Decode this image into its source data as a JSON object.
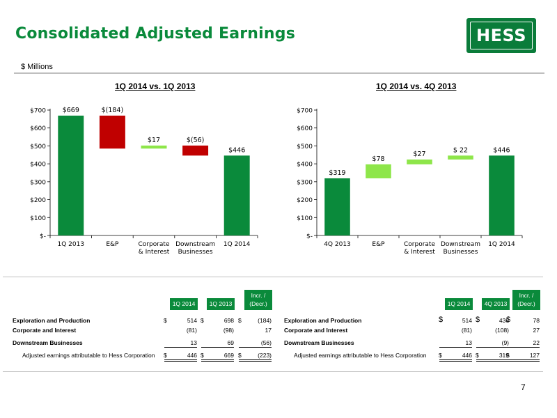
{
  "header": {
    "title": "Consolidated Adjusted Earnings",
    "units": "$ Millions",
    "logo_text": "HESS"
  },
  "colors": {
    "green_dark": "#0a8a3b",
    "green_light": "#8ee64a",
    "red": "#c00000"
  },
  "chart_data": [
    {
      "type": "bar",
      "subtype": "waterfall",
      "title": "1Q 2014 vs. 1Q 2013",
      "categories": [
        "1Q 2013",
        "E&P",
        "Corporate\n& Interest",
        "Downstream\nBusinesses",
        "1Q 2014"
      ],
      "values": [
        669,
        -184,
        17,
        -56,
        446
      ],
      "kinds": [
        "total",
        "delta",
        "delta",
        "delta",
        "total"
      ],
      "data_labels": [
        "$669",
        "$(184)",
        "$17",
        "$(56)",
        "$446"
      ],
      "yticks": [
        "$-",
        "$100",
        "$200",
        "$300",
        "$400",
        "$500",
        "$600",
        "$700"
      ],
      "ylim": [
        0,
        700
      ]
    },
    {
      "type": "bar",
      "subtype": "waterfall",
      "title": "1Q 2014 vs. 4Q 2013",
      "categories": [
        "4Q 2013",
        "E&P",
        "Corporate\n& Interest",
        "Downstream\nBusinesses",
        "1Q 2014"
      ],
      "values": [
        319,
        78,
        27,
        22,
        446
      ],
      "kinds": [
        "total",
        "delta",
        "delta",
        "delta",
        "total"
      ],
      "data_labels": [
        "$319",
        "$78",
        "$27",
        "$ 22",
        "$446"
      ],
      "yticks": [
        "$-",
        "$100",
        "$200",
        "$300",
        "$400",
        "$500",
        "$600",
        "$700"
      ],
      "ylim": [
        0,
        700
      ]
    }
  ],
  "tables": {
    "left": {
      "headers": [
        "1Q 2014",
        "1Q 2013",
        "Incr. /\n(Decr.)"
      ],
      "rows": [
        {
          "label": "Exploration and Production",
          "v1": "514",
          "v2": "698",
          "v3": "(184)",
          "dollar": true
        },
        {
          "label": "Corporate and Interest",
          "v1": "(81)",
          "v2": "(98)",
          "v3": "17",
          "dollar": false
        },
        {
          "label": "Downstream Businesses",
          "v1": "13",
          "v2": "69",
          "v3": "(56)",
          "dollar": false
        },
        {
          "label": "Adjusted earnings attributable to Hess Corporation",
          "v1": "446",
          "v2": "669",
          "v3": "(223)",
          "dollar": true
        }
      ]
    },
    "right": {
      "headers": [
        "1Q 2014",
        "4Q 2013",
        "Incr. /\n(Decr.)"
      ],
      "rows": [
        {
          "label": "Exploration and Production",
          "v1": "514",
          "v2": "436",
          "v3": "78",
          "dollar": true
        },
        {
          "label": "Corporate and Interest",
          "v1": "(81)",
          "v2": "(108)",
          "v3": "27",
          "dollar": false
        },
        {
          "label": "Downstream Businesses",
          "v1": "13",
          "v2": "(9)",
          "v3": "22",
          "dollar": false
        },
        {
          "label": "Adjusted earnings attributable to Hess Corporation",
          "v1": "446",
          "v2": "319",
          "v3": "127",
          "dollar": true
        }
      ]
    },
    "currency_symbol": "$"
  },
  "footer": {
    "page_number": "7"
  }
}
